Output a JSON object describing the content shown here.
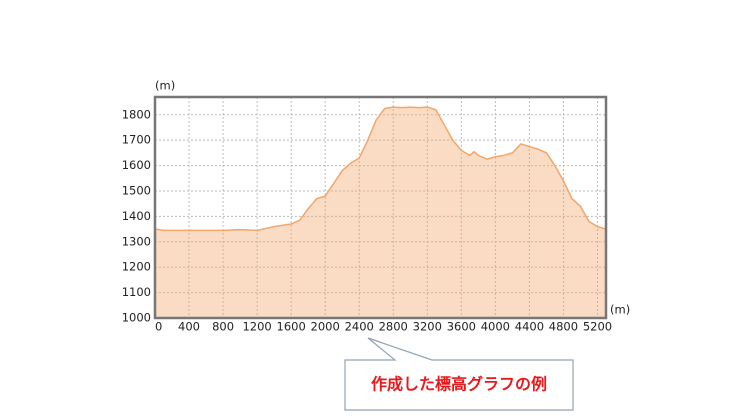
{
  "chart_data": {
    "type": "area",
    "y_label": "(m)",
    "x_label": "(m)",
    "x": [
      0,
      100,
      400,
      800,
      1000,
      1200,
      1400,
      1600,
      1700,
      1800,
      1900,
      2000,
      2100,
      2200,
      2300,
      2400,
      2500,
      2600,
      2700,
      2800,
      2900,
      3000,
      3100,
      3200,
      3300,
      3400,
      3500,
      3600,
      3700,
      3750,
      3800,
      3900,
      4000,
      4100,
      4200,
      4300,
      4400,
      4500,
      4600,
      4700,
      4800,
      4900,
      5000,
      5100,
      5200,
      5300
    ],
    "series": [
      {
        "color": "#f2a66a",
        "values": [
          1350,
          1345,
          1345,
          1345,
          1348,
          1345,
          1360,
          1370,
          1385,
          1430,
          1470,
          1480,
          1530,
          1580,
          1610,
          1630,
          1700,
          1780,
          1825,
          1830,
          1828,
          1830,
          1828,
          1830,
          1820,
          1760,
          1700,
          1660,
          1640,
          1655,
          1640,
          1625,
          1635,
          1640,
          1650,
          1685,
          1675,
          1665,
          1650,
          1600,
          1540,
          1470,
          1440,
          1380,
          1360,
          1350
        ]
      }
    ],
    "xlim": [
      0,
      5300
    ],
    "ylim": [
      1000,
      1870
    ],
    "xticks": [
      0,
      400,
      800,
      1200,
      1600,
      2000,
      2400,
      2800,
      3200,
      3600,
      4000,
      4400,
      4800,
      5200
    ],
    "yticks": [
      1000,
      1100,
      1200,
      1300,
      1400,
      1500,
      1600,
      1700,
      1800
    ],
    "grid": true,
    "annotation": "作成した標高グラフの例"
  }
}
